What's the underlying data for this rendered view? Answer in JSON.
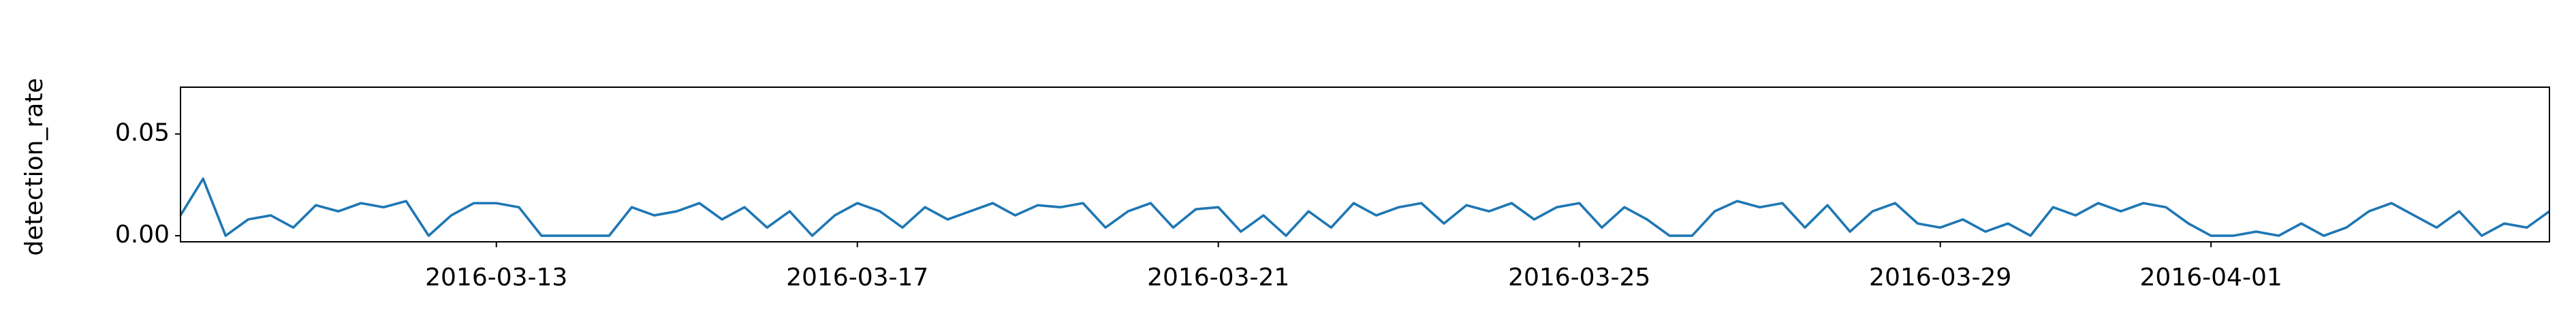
{
  "chart_data": {
    "type": "line",
    "ylabel": "detection_rate",
    "color": "#1f77b4",
    "x": [
      "2016-03-09 12:00",
      "2016-03-09 18:00",
      "2016-03-10 00:00",
      "2016-03-10 06:00",
      "2016-03-10 12:00",
      "2016-03-10 18:00",
      "2016-03-11 00:00",
      "2016-03-11 06:00",
      "2016-03-11 12:00",
      "2016-03-11 18:00",
      "2016-03-12 00:00",
      "2016-03-12 06:00",
      "2016-03-12 12:00",
      "2016-03-12 18:00",
      "2016-03-13 00:00",
      "2016-03-13 06:00",
      "2016-03-13 12:00",
      "2016-03-13 18:00",
      "2016-03-14 00:00",
      "2016-03-14 06:00",
      "2016-03-14 12:00",
      "2016-03-14 18:00",
      "2016-03-15 00:00",
      "2016-03-15 06:00",
      "2016-03-15 12:00",
      "2016-03-15 18:00",
      "2016-03-16 00:00",
      "2016-03-16 06:00",
      "2016-03-16 12:00",
      "2016-03-16 18:00",
      "2016-03-17 00:00",
      "2016-03-17 06:00",
      "2016-03-17 12:00",
      "2016-03-17 18:00",
      "2016-03-18 00:00",
      "2016-03-18 06:00",
      "2016-03-18 12:00",
      "2016-03-18 18:00",
      "2016-03-19 00:00",
      "2016-03-19 06:00",
      "2016-03-19 12:00",
      "2016-03-19 18:00",
      "2016-03-20 00:00",
      "2016-03-20 06:00",
      "2016-03-20 12:00",
      "2016-03-20 18:00",
      "2016-03-21 00:00",
      "2016-03-21 06:00",
      "2016-03-21 12:00",
      "2016-03-21 18:00",
      "2016-03-22 00:00",
      "2016-03-22 06:00",
      "2016-03-22 12:00",
      "2016-03-22 18:00",
      "2016-03-23 00:00",
      "2016-03-23 06:00",
      "2016-03-23 12:00",
      "2016-03-23 18:00",
      "2016-03-24 00:00",
      "2016-03-24 06:00",
      "2016-03-24 12:00",
      "2016-03-24 18:00",
      "2016-03-25 00:00",
      "2016-03-25 06:00",
      "2016-03-25 12:00",
      "2016-03-25 18:00",
      "2016-03-26 00:00",
      "2016-03-26 06:00",
      "2016-03-26 12:00",
      "2016-03-26 18:00",
      "2016-03-27 00:00",
      "2016-03-27 06:00",
      "2016-03-27 12:00",
      "2016-03-27 18:00",
      "2016-03-28 00:00",
      "2016-03-28 06:00",
      "2016-03-28 12:00",
      "2016-03-28 18:00",
      "2016-03-29 00:00",
      "2016-03-29 06:00",
      "2016-03-29 12:00",
      "2016-03-29 18:00",
      "2016-03-30 00:00",
      "2016-03-30 06:00",
      "2016-03-30 12:00",
      "2016-03-30 18:00",
      "2016-03-31 00:00",
      "2016-03-31 06:00",
      "2016-03-31 12:00",
      "2016-03-31 18:00",
      "2016-04-01 00:00",
      "2016-04-01 06:00",
      "2016-04-01 12:00",
      "2016-04-01 18:00",
      "2016-04-02 00:00",
      "2016-04-02 06:00",
      "2016-04-02 12:00",
      "2016-04-02 18:00",
      "2016-04-03 00:00",
      "2016-04-03 06:00",
      "2016-04-03 12:00",
      "2016-04-03 18:00",
      "2016-04-04 00:00",
      "2016-04-04 06:00",
      "2016-04-04 12:00",
      "2016-04-04 18:00"
    ],
    "values": [
      0.01,
      0.028,
      0.0,
      0.008,
      0.01,
      0.004,
      0.015,
      0.012,
      0.016,
      0.014,
      0.017,
      0.0,
      0.01,
      0.016,
      0.016,
      0.014,
      0.0,
      0.0,
      0.0,
      0.0,
      0.014,
      0.01,
      0.012,
      0.016,
      0.008,
      0.014,
      0.004,
      0.012,
      0.0,
      0.01,
      0.016,
      0.012,
      0.004,
      0.014,
      0.008,
      0.012,
      0.016,
      0.01,
      0.015,
      0.014,
      0.016,
      0.004,
      0.012,
      0.016,
      0.004,
      0.013,
      0.014,
      0.002,
      0.01,
      0.0,
      0.012,
      0.004,
      0.016,
      0.01,
      0.014,
      0.016,
      0.006,
      0.015,
      0.012,
      0.016,
      0.008,
      0.014,
      0.016,
      0.004,
      0.014,
      0.008,
      0.0,
      0.0,
      0.012,
      0.017,
      0.014,
      0.016,
      0.004,
      0.015,
      0.002,
      0.012,
      0.016,
      0.006,
      0.004,
      0.008,
      0.002,
      0.006,
      0.0,
      0.014,
      0.01,
      0.016,
      0.012,
      0.016,
      0.014,
      0.006,
      0.0,
      0.0,
      0.002,
      0.0,
      0.006,
      0.0,
      0.004,
      0.012,
      0.016,
      0.01,
      0.004,
      0.012,
      0.0,
      0.006,
      0.004,
      0.012
    ],
    "xlim": [
      "2016-03-09 12:00",
      "2016-04-04 18:00"
    ],
    "xticks": [
      "2016-03-13",
      "2016-03-17",
      "2016-03-21",
      "2016-03-25",
      "2016-03-29",
      "2016-04-01"
    ],
    "ylim": [
      -0.003,
      0.073
    ],
    "yticks": [
      {
        "value": 0,
        "label": "0.00"
      },
      {
        "value": 0.05,
        "label": "0.05"
      }
    ]
  }
}
